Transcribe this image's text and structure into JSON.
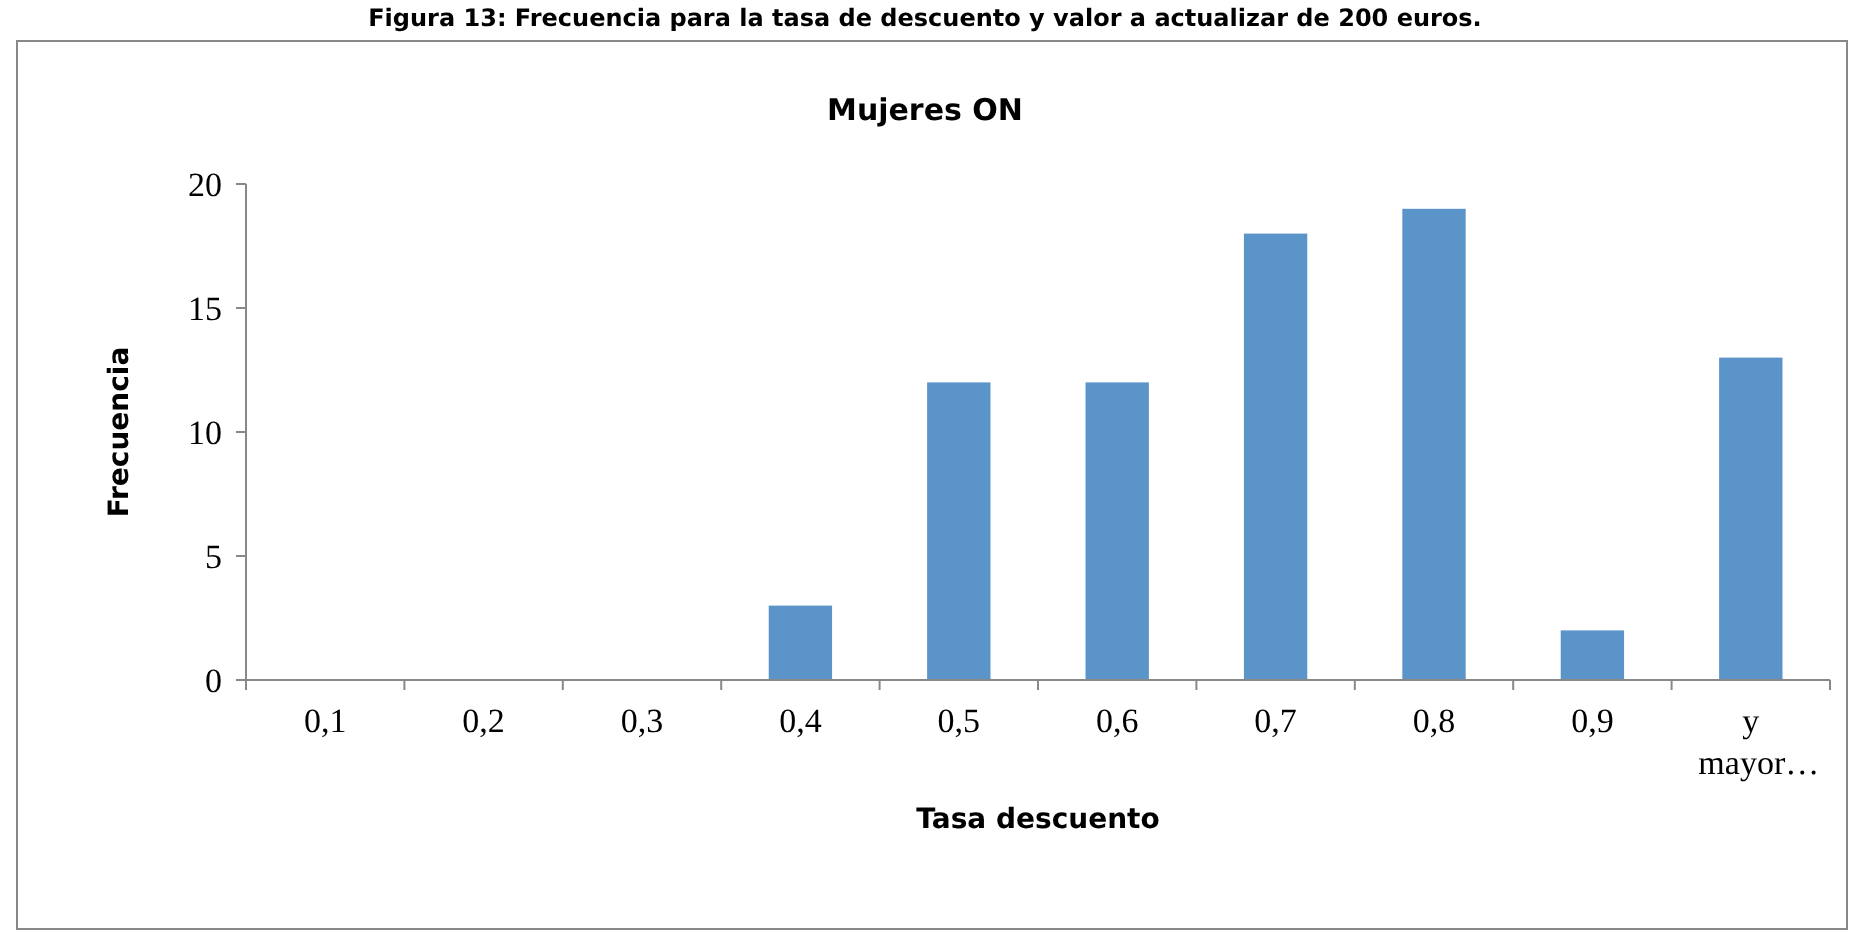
{
  "chart_data": {
    "type": "bar",
    "title": "Mujeres ON",
    "annotations": [
      "Figura 13: Frecuencia para la tasa de descuento y valor a actualizar de 200 euros."
    ],
    "xlabel": "Tasa descuento",
    "ylabel": "Frecuencia",
    "categories": [
      "0,1",
      "0,2",
      "0,3",
      "0,4",
      "0,5",
      "0,6",
      "0,7",
      "0,8",
      "0,9",
      "y mayor…"
    ],
    "values": [
      0,
      0,
      0,
      3,
      12,
      12,
      18,
      19,
      2,
      13
    ],
    "color": "#5b94c9",
    "ylim": [
      0,
      20
    ],
    "yticks": [
      0,
      5,
      10,
      15,
      20
    ],
    "grid": false
  }
}
